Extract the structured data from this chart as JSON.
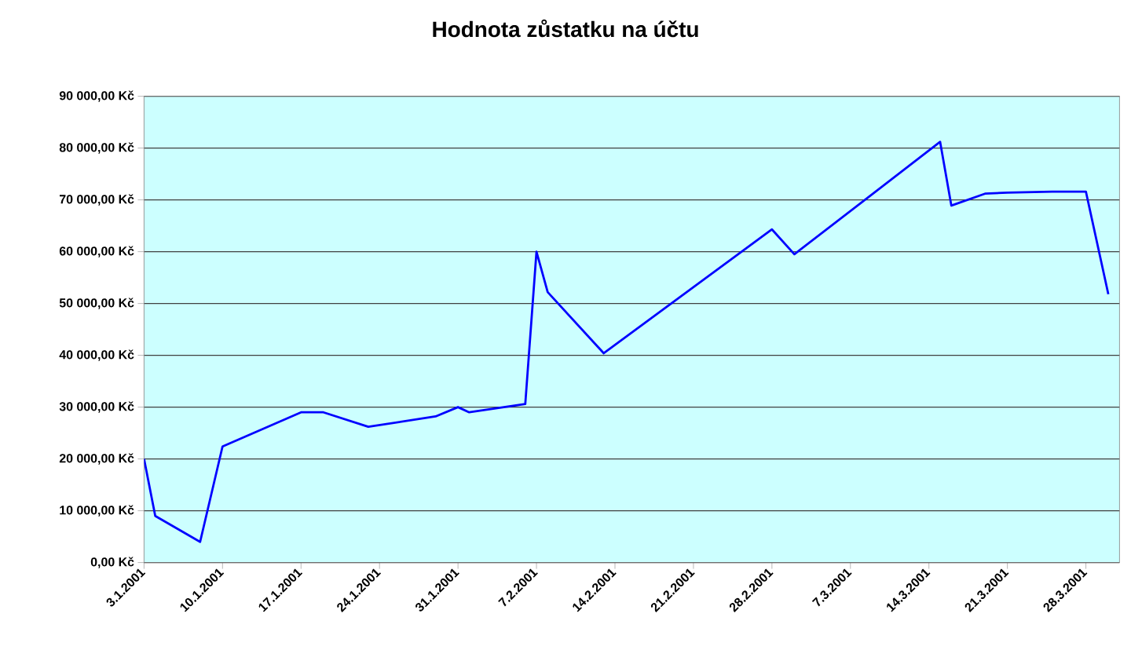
{
  "chart_data": {
    "type": "line",
    "title": "Hodnota zůstatku na účtu",
    "x": [
      "2001-01-03",
      "2001-01-04",
      "2001-01-08",
      "2001-01-10",
      "2001-01-17",
      "2001-01-19",
      "2001-01-23",
      "2001-01-29",
      "2001-01-31",
      "2001-02-01",
      "2001-02-06",
      "2001-02-07",
      "2001-02-08",
      "2001-02-13",
      "2001-02-28",
      "2001-03-02",
      "2001-03-15",
      "2001-03-16",
      "2001-03-19",
      "2001-03-21",
      "2001-03-25",
      "2001-03-28",
      "2001-03-30"
    ],
    "series": [
      {
        "color": "#0000ff",
        "values": [
          20000,
          9000,
          4000,
          22400,
          29000,
          29000,
          26200,
          28200,
          30000,
          29000,
          30600,
          60000,
          52200,
          40400,
          64300,
          59500,
          81200,
          68900,
          71200,
          71400,
          71600,
          71600,
          51800
        ]
      }
    ],
    "xlim": [
      "2001-01-03",
      "2001-03-31"
    ],
    "xticks": [
      {
        "value": "2001-01-03",
        "label": "3.1.2001"
      },
      {
        "value": "2001-01-10",
        "label": "10.1.2001"
      },
      {
        "value": "2001-01-17",
        "label": "17.1.2001"
      },
      {
        "value": "2001-01-24",
        "label": "24.1.2001"
      },
      {
        "value": "2001-01-31",
        "label": "31.1.2001"
      },
      {
        "value": "2001-02-07",
        "label": "7.2.2001"
      },
      {
        "value": "2001-02-14",
        "label": "14.2.2001"
      },
      {
        "value": "2001-02-21",
        "label": "21.2.2001"
      },
      {
        "value": "2001-02-28",
        "label": "28.2.2001"
      },
      {
        "value": "2001-03-07",
        "label": "7.3.2001"
      },
      {
        "value": "2001-03-14",
        "label": "14.3.2001"
      },
      {
        "value": "2001-03-21",
        "label": "21.3.2001"
      },
      {
        "value": "2001-03-28",
        "label": "28.3.2001"
      }
    ],
    "ylim": [
      0,
      90000
    ],
    "yticks": [
      {
        "value": 0,
        "label": "0,00 Kč"
      },
      {
        "value": 10000,
        "label": "10 000,00 Kč"
      },
      {
        "value": 20000,
        "label": "20 000,00 Kč"
      },
      {
        "value": 30000,
        "label": "30 000,00 Kč"
      },
      {
        "value": 40000,
        "label": "40 000,00 Kč"
      },
      {
        "value": 50000,
        "label": "50 000,00 Kč"
      },
      {
        "value": 60000,
        "label": "60 000,00 Kč"
      },
      {
        "value": 70000,
        "label": "70 000,00 Kč"
      },
      {
        "value": 80000,
        "label": "80 000,00 Kč"
      },
      {
        "value": 90000,
        "label": "90 000,00 Kč"
      }
    ],
    "grid": "y",
    "marker": "none",
    "line_style": "solid"
  }
}
